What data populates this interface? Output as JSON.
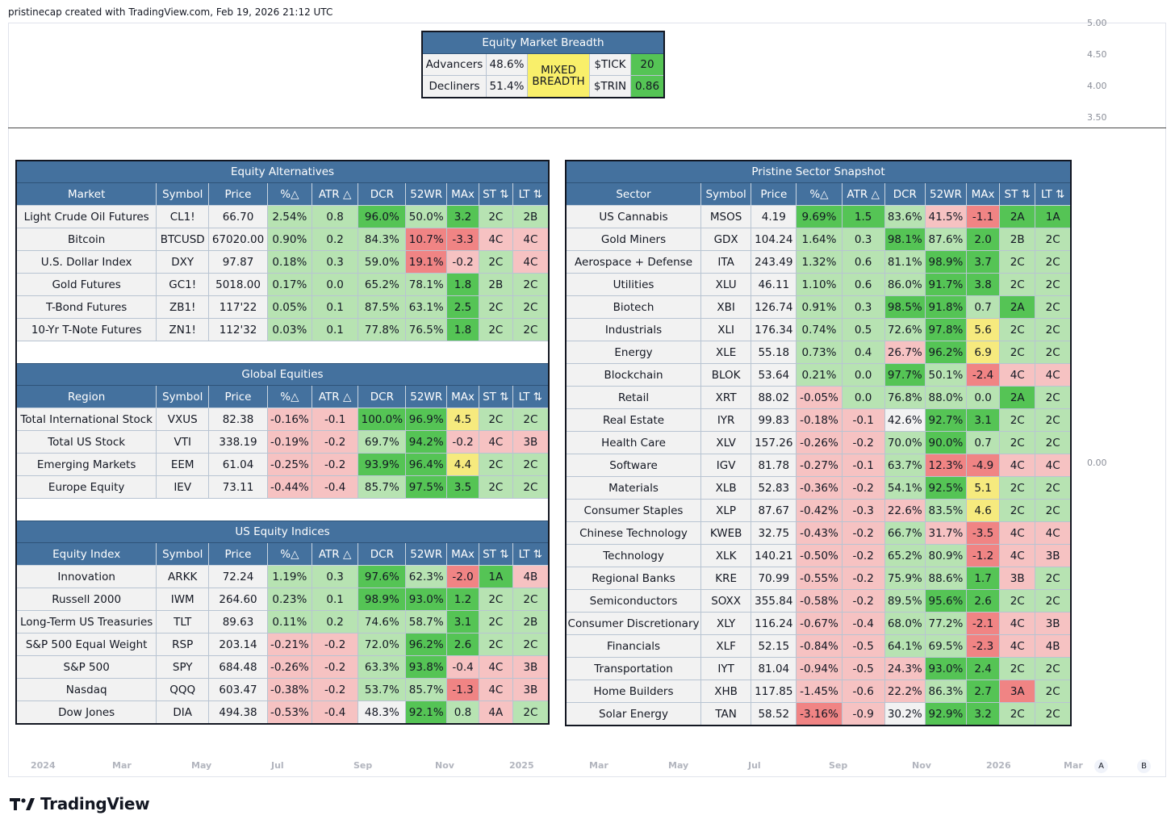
{
  "header": {
    "text": "pristinecap created with TradingView.com, Feb 19, 2026 21:12 UTC"
  },
  "y_axis": [
    "5.00",
    "4.50",
    "4.00",
    "3.50",
    "0.00"
  ],
  "x_axis": [
    "2024",
    "Mar",
    "May",
    "Jul",
    "Sep",
    "Nov",
    "2025",
    "Mar",
    "May",
    "Jul",
    "Sep",
    "Nov",
    "2026",
    "Mar"
  ],
  "scale_buttons": [
    "A",
    "B"
  ],
  "logo": "TradingView",
  "breadth": {
    "title": "Equity Market Breadth",
    "advancers_label": "Advancers",
    "advancers_value": "48.6%",
    "decliners_label": "Decliners",
    "decliners_value": "51.4%",
    "status": "MIXED BREADTH",
    "tick_label": "$TICK",
    "tick_value": "20",
    "trin_label": "$TRIN",
    "trin_value": "0.86"
  },
  "columns": [
    "Symbol",
    "Price",
    "%△",
    "ATR △",
    "DCR",
    "52WR",
    "MAx",
    "ST ⇅",
    "LT ⇅"
  ],
  "sections": [
    {
      "title": "Equity Alternatives",
      "first_col": "Market",
      "rows": [
        [
          "Light Crude Oil Futures",
          "CL1!",
          "66.70",
          "2.54%",
          "0.8",
          "96.0%",
          "50.0%",
          "3.2",
          "2C",
          "2B"
        ],
        [
          "Bitcoin",
          "BTCUSD",
          "67020.00",
          "0.90%",
          "0.2",
          "84.3%",
          "10.7%",
          "-3.3",
          "4C",
          "4C"
        ],
        [
          "U.S. Dollar Index",
          "DXY",
          "97.87",
          "0.18%",
          "0.3",
          "59.0%",
          "19.1%",
          "-0.2",
          "2C",
          "4C"
        ],
        [
          "Gold Futures",
          "GC1!",
          "5018.00",
          "0.17%",
          "0.0",
          "65.2%",
          "78.1%",
          "1.8",
          "2B",
          "2C"
        ],
        [
          "T-Bond Futures",
          "ZB1!",
          "117'22",
          "0.05%",
          "0.1",
          "87.5%",
          "63.1%",
          "2.5",
          "2C",
          "2C"
        ],
        [
          "10-Yr T-Note Futures",
          "ZN1!",
          "112'32",
          "0.03%",
          "0.1",
          "77.8%",
          "76.5%",
          "1.8",
          "2C",
          "2C"
        ]
      ]
    },
    {
      "title": "Global Equities",
      "first_col": "Region",
      "rows": [
        [
          "Total International Stock",
          "VXUS",
          "82.38",
          "-0.16%",
          "-0.1",
          "100.0%",
          "96.9%",
          "4.5",
          "2C",
          "2C"
        ],
        [
          "Total US Stock",
          "VTI",
          "338.19",
          "-0.19%",
          "-0.2",
          "69.7%",
          "94.2%",
          "-0.2",
          "4C",
          "3B"
        ],
        [
          "Emerging Markets",
          "EEM",
          "61.04",
          "-0.25%",
          "-0.2",
          "93.9%",
          "96.4%",
          "4.4",
          "2C",
          "2C"
        ],
        [
          "Europe Equity",
          "IEV",
          "73.11",
          "-0.44%",
          "-0.4",
          "85.7%",
          "97.5%",
          "3.5",
          "2C",
          "2C"
        ]
      ]
    },
    {
      "title": "US Equity Indices",
      "first_col": "Equity Index",
      "rows": [
        [
          "Innovation",
          "ARKK",
          "72.24",
          "1.19%",
          "0.3",
          "97.6%",
          "62.3%",
          "-2.0",
          "1A",
          "4B"
        ],
        [
          "Russell 2000",
          "IWM",
          "264.60",
          "0.23%",
          "0.1",
          "98.9%",
          "93.0%",
          "1.2",
          "2C",
          "2C"
        ],
        [
          "Long-Term US Treasuries",
          "TLT",
          "89.63",
          "0.11%",
          "0.2",
          "74.6%",
          "58.7%",
          "3.1",
          "2C",
          "2B"
        ],
        [
          "S&P 500 Equal Weight",
          "RSP",
          "203.14",
          "-0.21%",
          "-0.2",
          "72.0%",
          "96.2%",
          "2.6",
          "2C",
          "2C"
        ],
        [
          "S&P 500",
          "SPY",
          "684.48",
          "-0.26%",
          "-0.2",
          "63.3%",
          "93.8%",
          "-0.4",
          "4C",
          "3B"
        ],
        [
          "Nasdaq",
          "QQQ",
          "603.47",
          "-0.38%",
          "-0.2",
          "53.7%",
          "85.7%",
          "-1.3",
          "4C",
          "3B"
        ],
        [
          "Dow Jones",
          "DIA",
          "494.38",
          "-0.53%",
          "-0.4",
          "48.3%",
          "92.1%",
          "0.8",
          "4A",
          "2C"
        ]
      ]
    }
  ],
  "sector": {
    "title": "Pristine Sector Snapshot",
    "first_col": "Sector",
    "rows": [
      [
        "US Cannabis",
        "MSOS",
        "4.19",
        "9.69%",
        "1.5",
        "83.6%",
        "41.5%",
        "-1.1",
        "2A",
        "1A"
      ],
      [
        "Gold Miners",
        "GDX",
        "104.24",
        "1.64%",
        "0.3",
        "98.1%",
        "87.6%",
        "2.0",
        "2B",
        "2C"
      ],
      [
        "Aerospace + Defense",
        "ITA",
        "243.49",
        "1.32%",
        "0.6",
        "81.1%",
        "98.9%",
        "3.7",
        "2C",
        "2C"
      ],
      [
        "Utilities",
        "XLU",
        "46.11",
        "1.10%",
        "0.6",
        "86.0%",
        "91.7%",
        "3.8",
        "2C",
        "2C"
      ],
      [
        "Biotech",
        "XBI",
        "126.74",
        "0.91%",
        "0.3",
        "98.5%",
        "91.8%",
        "0.7",
        "2A",
        "2C"
      ],
      [
        "Industrials",
        "XLI",
        "176.34",
        "0.74%",
        "0.5",
        "72.6%",
        "97.8%",
        "5.6",
        "2C",
        "2C"
      ],
      [
        "Energy",
        "XLE",
        "55.18",
        "0.73%",
        "0.4",
        "26.7%",
        "96.2%",
        "6.9",
        "2C",
        "2C"
      ],
      [
        "Blockchain",
        "BLOK",
        "53.64",
        "0.21%",
        "0.0",
        "97.7%",
        "50.1%",
        "-2.4",
        "4C",
        "4C"
      ],
      [
        "Retail",
        "XRT",
        "88.02",
        "-0.05%",
        "0.0",
        "76.8%",
        "88.0%",
        "0.0",
        "2A",
        "2C"
      ],
      [
        "Real Estate",
        "IYR",
        "99.83",
        "-0.18%",
        "-0.1",
        "42.6%",
        "92.7%",
        "3.1",
        "2C",
        "2C"
      ],
      [
        "Health Care",
        "XLV",
        "157.26",
        "-0.26%",
        "-0.2",
        "70.0%",
        "90.0%",
        "0.7",
        "2C",
        "2C"
      ],
      [
        "Software",
        "IGV",
        "81.78",
        "-0.27%",
        "-0.1",
        "63.7%",
        "12.3%",
        "-4.9",
        "4C",
        "4C"
      ],
      [
        "Materials",
        "XLB",
        "52.83",
        "-0.36%",
        "-0.2",
        "54.1%",
        "92.5%",
        "5.1",
        "2C",
        "2C"
      ],
      [
        "Consumer Staples",
        "XLP",
        "87.67",
        "-0.42%",
        "-0.3",
        "22.6%",
        "83.5%",
        "4.6",
        "2C",
        "2C"
      ],
      [
        "Chinese Technology",
        "KWEB",
        "32.75",
        "-0.43%",
        "-0.2",
        "66.7%",
        "31.7%",
        "-3.5",
        "4C",
        "4C"
      ],
      [
        "Technology",
        "XLK",
        "140.21",
        "-0.50%",
        "-0.2",
        "65.2%",
        "80.9%",
        "-1.2",
        "4C",
        "3B"
      ],
      [
        "Regional Banks",
        "KRE",
        "70.99",
        "-0.55%",
        "-0.2",
        "75.9%",
        "88.6%",
        "1.7",
        "3B",
        "2C"
      ],
      [
        "Semiconductors",
        "SOXX",
        "355.84",
        "-0.58%",
        "-0.2",
        "89.5%",
        "95.6%",
        "2.6",
        "2C",
        "2C"
      ],
      [
        "Consumer Discretionary",
        "XLY",
        "116.24",
        "-0.67%",
        "-0.4",
        "68.0%",
        "77.2%",
        "-2.1",
        "4C",
        "3B"
      ],
      [
        "Financials",
        "XLF",
        "52.15",
        "-0.84%",
        "-0.5",
        "64.1%",
        "69.5%",
        "-2.3",
        "4C",
        "4B"
      ],
      [
        "Transportation",
        "IYT",
        "81.04",
        "-0.94%",
        "-0.5",
        "24.3%",
        "93.0%",
        "2.4",
        "2C",
        "2C"
      ],
      [
        "Home Builders",
        "XHB",
        "117.85",
        "-1.45%",
        "-0.6",
        "22.2%",
        "86.3%",
        "2.7",
        "3A",
        "2C"
      ],
      [
        "Solar Energy",
        "TAN",
        "58.52",
        "-3.16%",
        "-0.9",
        "30.2%",
        "92.9%",
        "3.2",
        "2C",
        "2C"
      ]
    ]
  },
  "colors": {
    "header_blue": "#44719e",
    "light_green": "#b7e3b2",
    "strong_green": "#55c455",
    "light_red": "#f6c2c2",
    "strong_red": "#f08484",
    "yellow": "#f6ea7e"
  }
}
